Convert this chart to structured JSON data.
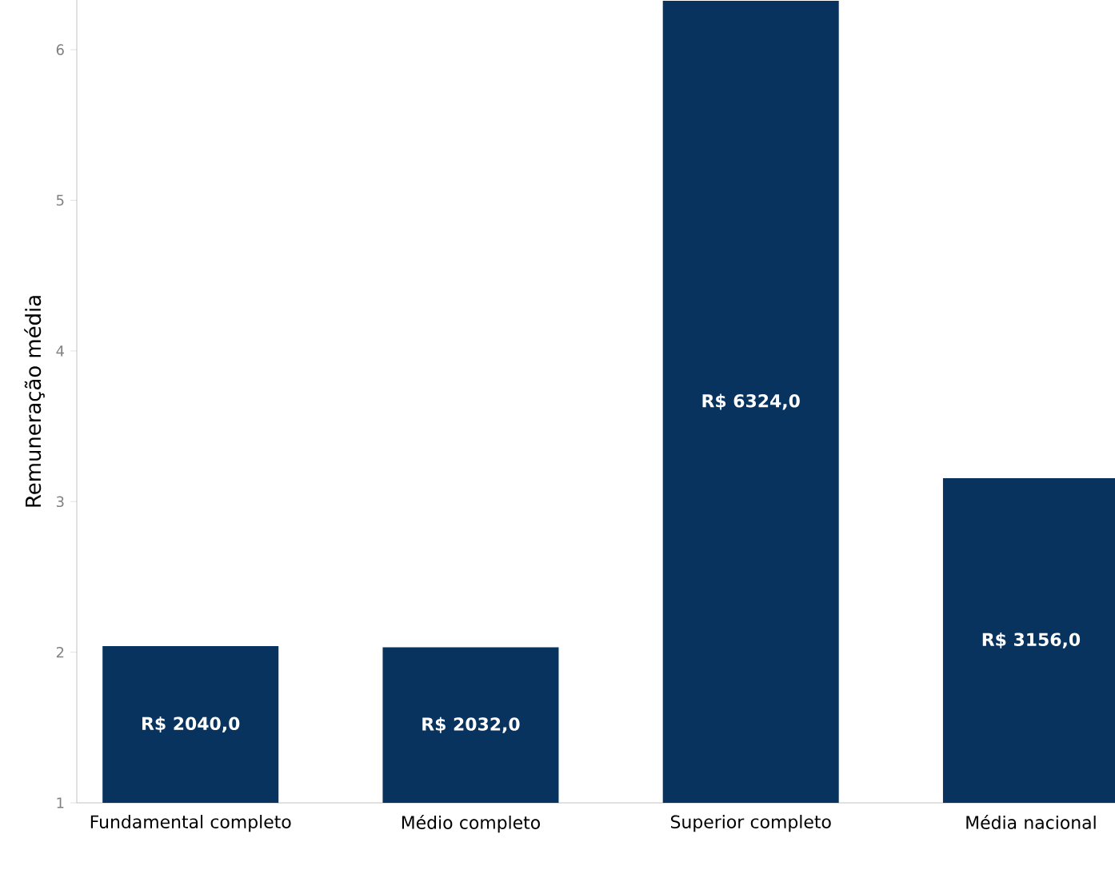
{
  "chart_data": {
    "type": "bar",
    "ylabel": "Remuneração média",
    "categories": [
      "Fundamental completo",
      "Médio completo",
      "Superior completo",
      "Média nacional"
    ],
    "values": [
      2.04,
      2.032,
      6.324,
      3.156
    ],
    "value_labels": [
      "R$ 2040,0",
      "R$ 2032,0",
      "R$ 6324,0",
      "R$ 3156,0"
    ],
    "color": "#08335e",
    "ylim": [
      1,
      6.33
    ],
    "yticks": [
      1,
      2,
      3,
      4,
      5,
      6
    ],
    "grid": false
  }
}
